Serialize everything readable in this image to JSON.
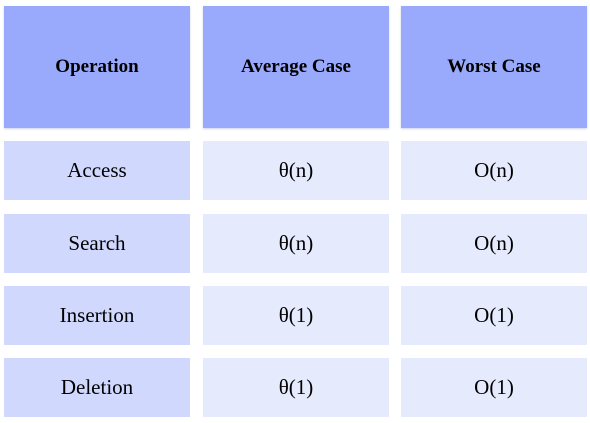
{
  "table": {
    "headers": [
      "Operation",
      "Average Case",
      "Worst Case"
    ],
    "rows": [
      [
        "Access",
        "θ(n)",
        "O(n)"
      ],
      [
        "Search",
        "θ(n)",
        "O(n)"
      ],
      [
        "Insertion",
        "θ(1)",
        "O(1)"
      ],
      [
        "Deletion",
        "θ(1)",
        "O(1)"
      ]
    ]
  },
  "colors": {
    "header_bg": "#99a9fb",
    "first_col_bg": "#d0d8fd",
    "body_bg": "#e6eafd"
  }
}
